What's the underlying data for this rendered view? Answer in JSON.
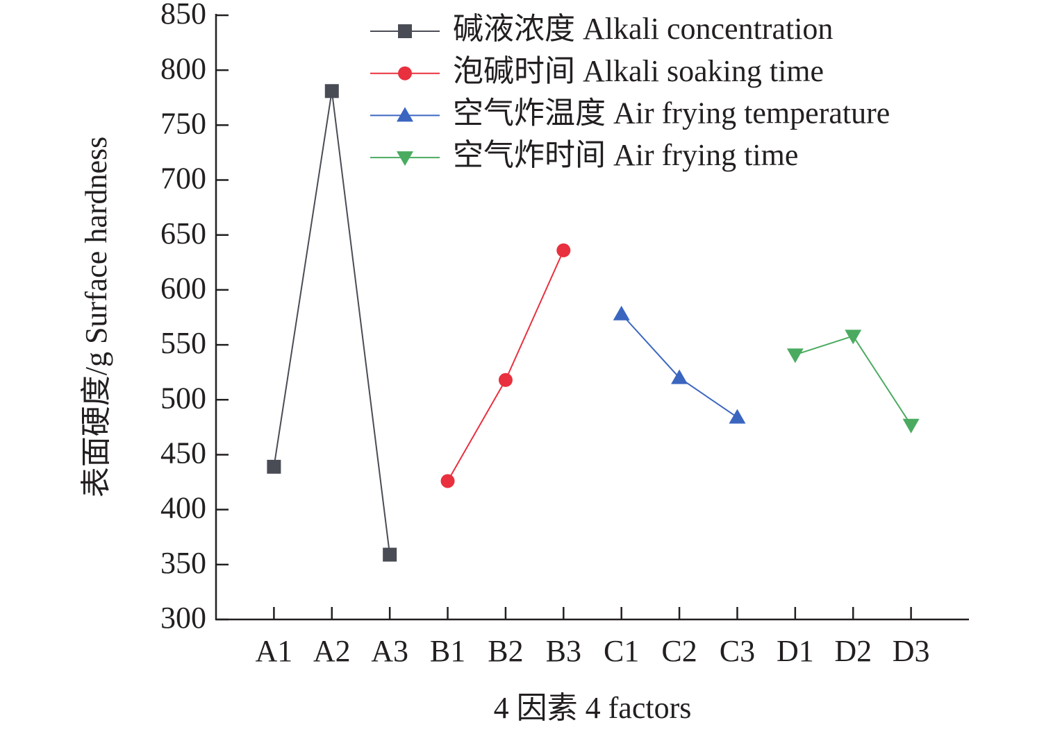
{
  "chart_data": {
    "type": "line",
    "xlabel": "4 因素 4 factors",
    "ylabel": "表面硬度/g Surface hardness",
    "categories": [
      "A1",
      "A2",
      "A3",
      "B1",
      "B2",
      "B3",
      "C1",
      "C2",
      "C3",
      "D1",
      "D2",
      "D3"
    ],
    "series": [
      {
        "name": "碱液浓度 Alkali concentration",
        "color": "#4a4c55",
        "marker": "square",
        "values": [
          439,
          781,
          359,
          null,
          null,
          null,
          null,
          null,
          null,
          null,
          null,
          null
        ]
      },
      {
        "name": "泡碱时间 Alkali soaking time",
        "color": "#e8303f",
        "marker": "circle",
        "values": [
          null,
          null,
          null,
          426,
          518,
          636,
          null,
          null,
          null,
          null,
          null,
          null
        ]
      },
      {
        "name": "空气炸温度 Air frying temperature",
        "color": "#3a66c0",
        "marker": "triangle-up",
        "values": [
          null,
          null,
          null,
          null,
          null,
          null,
          578,
          520,
          484,
          null,
          null,
          null
        ]
      },
      {
        "name": "空气炸时间 Air frying time",
        "color": "#4aab60",
        "marker": "triangle-down",
        "values": [
          null,
          null,
          null,
          null,
          null,
          null,
          null,
          null,
          null,
          541,
          558,
          477
        ]
      }
    ],
    "ylim": [
      300,
      850
    ],
    "yticks": [
      300,
      350,
      400,
      450,
      500,
      550,
      600,
      650,
      700,
      750,
      800,
      850
    ],
    "legend": "upper center",
    "grid": false
  }
}
